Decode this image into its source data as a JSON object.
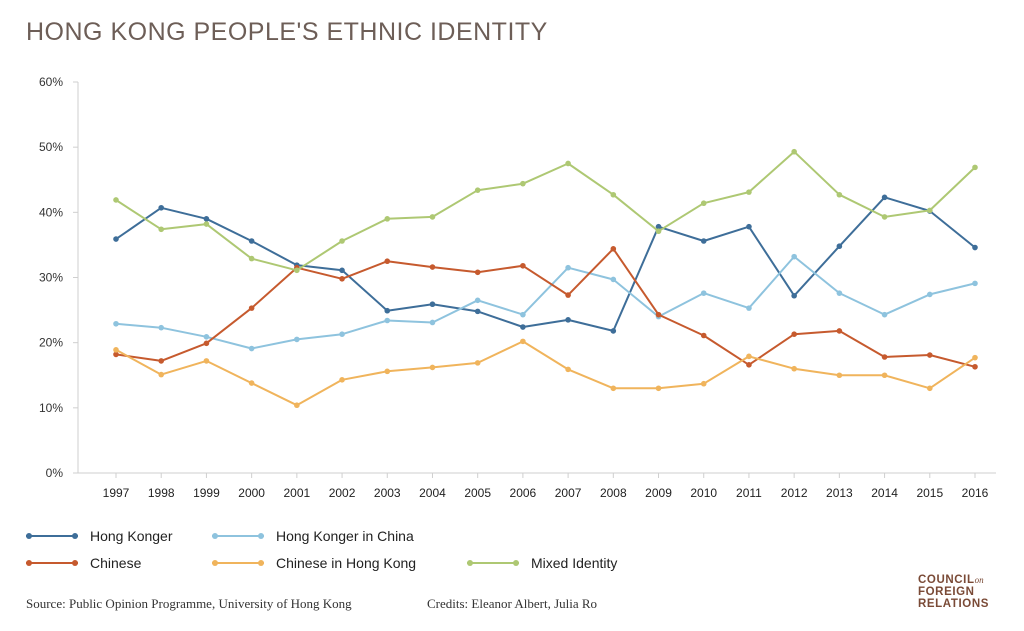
{
  "title": "HONG KONG PEOPLE'S ETHNIC IDENTITY",
  "chart_data": {
    "type": "line",
    "title": "HONG KONG PEOPLE'S ETHNIC IDENTITY",
    "xlabel": "",
    "ylabel": "",
    "x": [
      "1997",
      "1998",
      "1999",
      "2000",
      "2001",
      "2002",
      "2003",
      "2004",
      "2005",
      "2006",
      "2007",
      "2008",
      "2009",
      "2010",
      "2011",
      "2012",
      "2013",
      "2014",
      "2015",
      "2016"
    ],
    "ylim": [
      0,
      60
    ],
    "yticks": [
      "0%",
      "10%",
      "20%",
      "30%",
      "40%",
      "50%",
      "60%"
    ],
    "grid": false,
    "legend_position": "bottom-left",
    "series": [
      {
        "name": "Hong Konger",
        "color": "#3e6e99",
        "values": [
          35.9,
          40.7,
          39.0,
          35.6,
          31.9,
          31.1,
          24.9,
          25.9,
          24.8,
          22.4,
          23.5,
          21.8,
          37.8,
          35.6,
          37.8,
          27.2,
          34.8,
          42.3,
          40.2,
          34.6
        ]
      },
      {
        "name": "Hong Konger in China",
        "color": "#8ec3de",
        "values": [
          22.9,
          22.3,
          20.9,
          19.1,
          20.5,
          21.3,
          23.4,
          23.1,
          26.5,
          24.3,
          31.5,
          29.7,
          24.0,
          27.6,
          25.3,
          33.2,
          27.6,
          24.3,
          27.4,
          29.1
        ]
      },
      {
        "name": "Chinese",
        "color": "#c65a2e",
        "values": [
          18.2,
          17.2,
          19.9,
          25.3,
          31.5,
          29.8,
          32.5,
          31.6,
          30.8,
          31.8,
          27.3,
          34.4,
          24.3,
          21.1,
          16.6,
          21.3,
          21.8,
          17.8,
          18.1,
          16.3
        ]
      },
      {
        "name": "Chinese in Hong Kong",
        "color": "#f0b45c",
        "values": [
          18.9,
          15.1,
          17.2,
          13.8,
          10.4,
          14.3,
          15.6,
          16.2,
          16.9,
          20.2,
          15.9,
          13.0,
          13.0,
          13.7,
          17.9,
          16.0,
          15.0,
          15.0,
          13.0,
          17.7
        ]
      },
      {
        "name": "Mixed Identity",
        "color": "#aec873",
        "values": [
          41.9,
          37.4,
          38.2,
          32.9,
          31.1,
          35.6,
          39.0,
          39.3,
          43.4,
          44.4,
          47.5,
          42.7,
          37.1,
          41.4,
          43.1,
          49.3,
          42.7,
          39.3,
          40.3,
          46.9
        ]
      }
    ]
  },
  "legend": [
    {
      "label": "Hong Konger",
      "color": "#3e6e99"
    },
    {
      "label": "Hong Konger in China",
      "color": "#8ec3de"
    },
    {
      "label": "Chinese",
      "color": "#c65a2e"
    },
    {
      "label": "Chinese in Hong Kong",
      "color": "#f0b45c"
    },
    {
      "label": "Mixed Identity",
      "color": "#aec873"
    }
  ],
  "footer": {
    "source": "Source: Public Opinion Programme, University of Hong Kong",
    "credits": "Credits: Eleanor Albert, Julia Ro"
  },
  "logo": {
    "line1": "COUNCIL",
    "line1_suffix": "on",
    "line2": "FOREIGN",
    "line3": "RELATIONS"
  }
}
